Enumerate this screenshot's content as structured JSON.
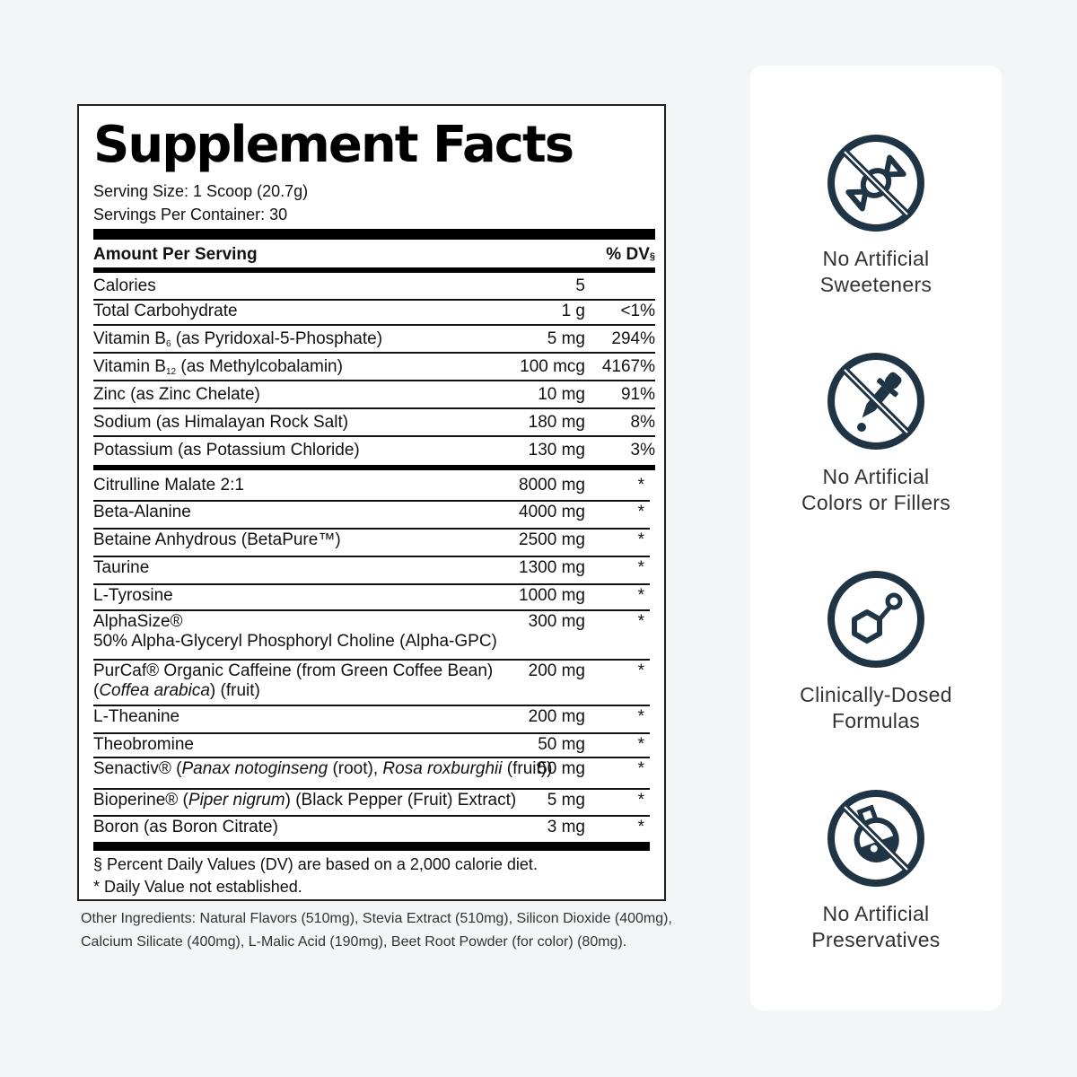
{
  "facts": {
    "title": "Supplement Facts",
    "serving_size": "Serving Size: 1 Scoop (20.7g)",
    "servings_per_container": "Servings Per Container: 30",
    "header_left": "Amount Per Serving",
    "header_right": "% DV",
    "header_right_mark": "§",
    "vitamins": [
      {
        "name": "Calories",
        "amount": "5",
        "dv": ""
      },
      {
        "name": "Total Carbohydrate",
        "amount": "1 g",
        "dv": "<1%"
      },
      {
        "name_pre": "Vitamin B",
        "name_sub": "6",
        "name_post": " (as Pyridoxal-5-Phosphate)",
        "amount": "5 mg",
        "dv": "294%"
      },
      {
        "name_pre": "Vitamin B",
        "name_sub": "12",
        "name_post": " (as Methylcobalamin)",
        "amount": "100 mcg",
        "dv": "4167%"
      },
      {
        "name": "Zinc (as Zinc Chelate)",
        "amount": "10 mg",
        "dv": "91%"
      },
      {
        "name": "Sodium (as Himalayan Rock Salt)",
        "amount": "180 mg",
        "dv": "8%"
      },
      {
        "name": "Potassium (as Potassium Chloride)",
        "amount": "130 mg",
        "dv": "3%"
      }
    ],
    "ingredients": [
      {
        "name": "Citrulline Malate 2:1",
        "amount": "8000 mg",
        "dv": "*"
      },
      {
        "name": "Beta-Alanine",
        "amount": "4000 mg",
        "dv": "*"
      },
      {
        "name": "Betaine Anhydrous (BetaPure™)",
        "amount": "2500 mg",
        "dv": "*"
      },
      {
        "name": "Taurine",
        "amount": "1300 mg",
        "dv": "*"
      },
      {
        "name": "L-Tyrosine",
        "amount": "1000 mg",
        "dv": "*"
      },
      {
        "name": "AlphaSize®",
        "name_line2": "50% Alpha-Glyceryl Phosphoryl Choline (Alpha-GPC)",
        "amount": "300 mg",
        "dv": "*"
      },
      {
        "name": "PurCaf® Organic Caffeine (from Green Coffee Bean)",
        "name_line2_italic": "Coffea arabica",
        "name_line2_pre": "(",
        "name_line2_post": ") (fruit)",
        "amount": "200 mg",
        "dv": "*"
      },
      {
        "name": "L-Theanine",
        "amount": "200 mg",
        "dv": "*"
      },
      {
        "name": "Theobromine",
        "amount": "50 mg",
        "dv": "*"
      },
      {
        "name_parts": [
          "Senactiv® (",
          "Panax notoginseng",
          " (root), ",
          "Rosa roxburghii",
          " (fruit))"
        ],
        "amount": "50 mg",
        "dv": "*"
      },
      {
        "name_parts": [
          "Bioperine® (",
          "Piper nigrum",
          ") (Black Pepper (Fruit) Extract)"
        ],
        "amount": "5 mg",
        "dv": "*"
      },
      {
        "name": "Boron (as Boron Citrate)",
        "amount": "3 mg",
        "dv": "*"
      }
    ],
    "footnote_1": "§ Percent Daily Values (DV) are based on a 2,000 calorie diet.",
    "footnote_2": "* Daily Value not established."
  },
  "other_ingredients": "Other Ingredients: Natural Flavors (510mg), Stevia Extract (510mg), Silicon Dioxide (400mg), Calcium Silicate (400mg), L-Malic Acid (190mg), Beet Root Powder (for color) (80mg).",
  "badges": [
    {
      "icon": "no-sweeteners-icon",
      "line1": "No Artificial",
      "line2": "Sweeteners"
    },
    {
      "icon": "no-colors-icon",
      "line1": "No Artificial",
      "line2": "Colors or Fillers"
    },
    {
      "icon": "molecule-icon",
      "line1": "Clinically-Dosed",
      "line2": "Formulas"
    },
    {
      "icon": "no-preservatives-icon",
      "line1": "No Artificial",
      "line2": "Preservatives"
    }
  ],
  "colors": {
    "icon": "#1f3444",
    "text": "#111111",
    "panel": "#ffffff",
    "background": "#f4f5f7"
  }
}
